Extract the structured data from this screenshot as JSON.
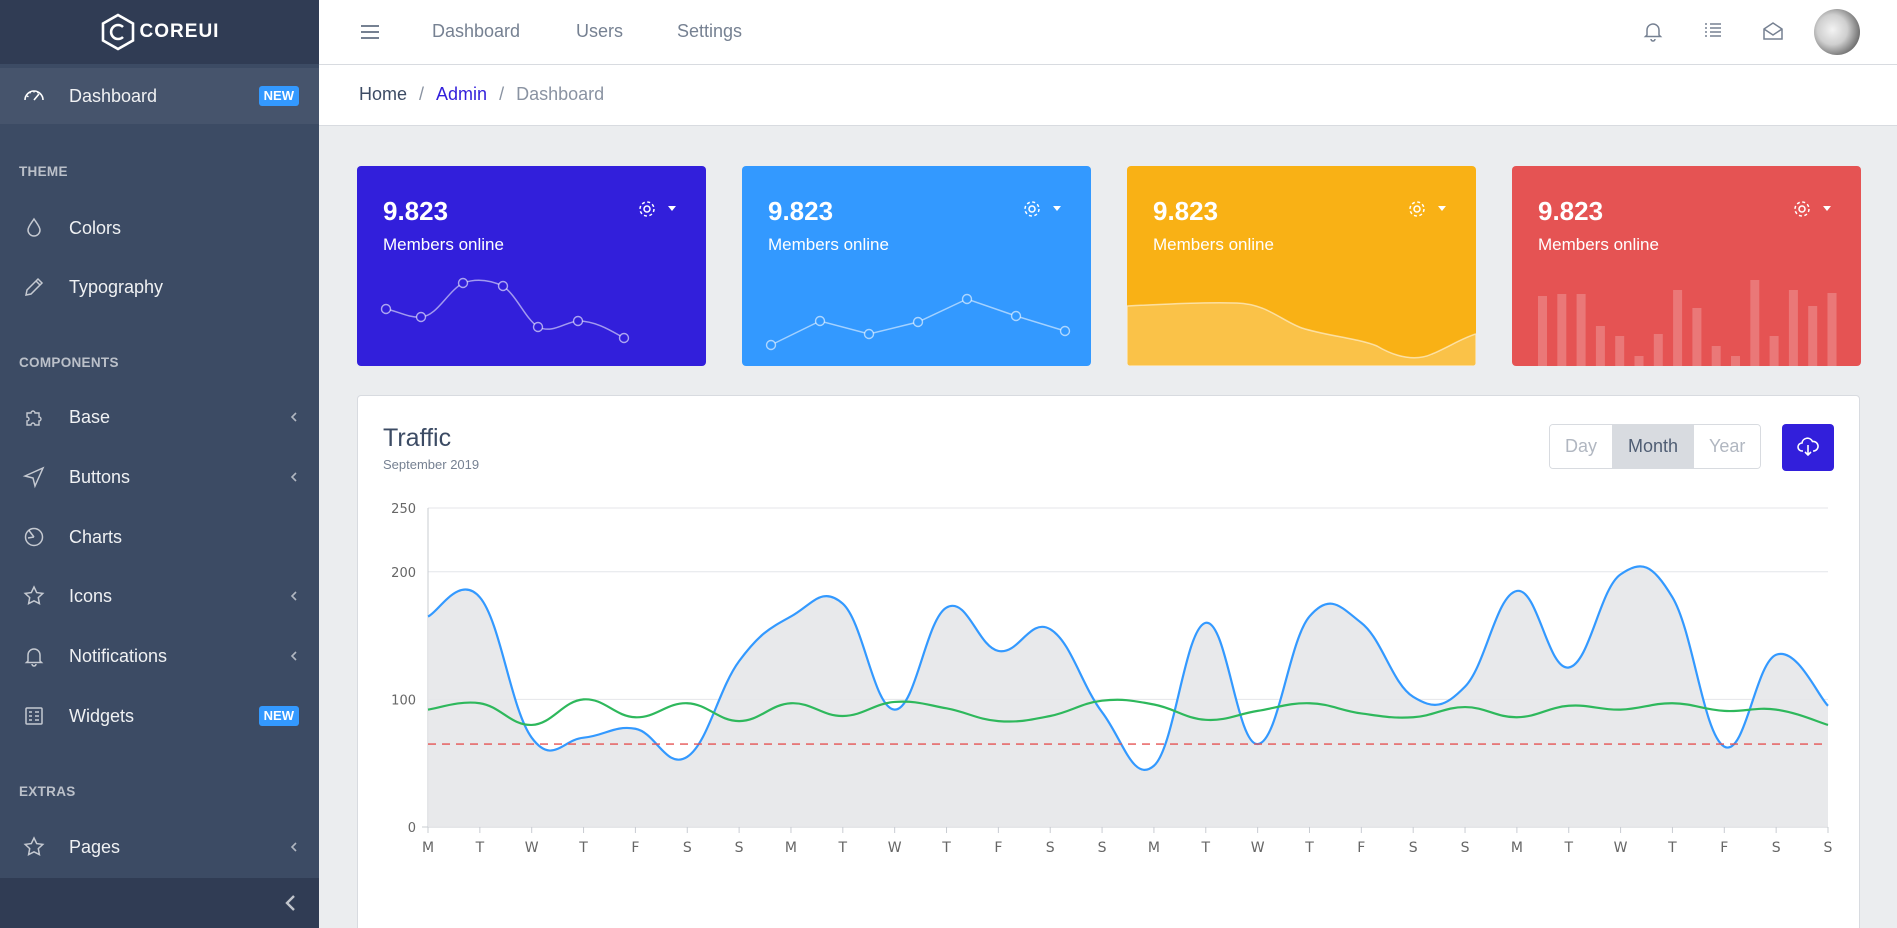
{
  "brand": {
    "name": "COREUI"
  },
  "sidebar": {
    "dashboard": {
      "label": "Dashboard",
      "badge": "NEW"
    },
    "theme_title": "THEME",
    "colors": "Colors",
    "typography": "Typography",
    "components_title": "COMPONENTS",
    "base": "Base",
    "buttons": "Buttons",
    "charts": "Charts",
    "icons": "Icons",
    "notifications": "Notifications",
    "widgets": {
      "label": "Widgets",
      "badge": "NEW"
    },
    "extras_title": "EXTRAS",
    "pages": "Pages"
  },
  "header": {
    "nav": [
      "Dashboard",
      "Users",
      "Settings"
    ],
    "icons": [
      "bell-icon",
      "list-icon",
      "envelope-icon"
    ]
  },
  "breadcrumb": {
    "home": "Home",
    "admin": "Admin",
    "current": "Dashboard",
    "separator": "/"
  },
  "cards": [
    {
      "value": "9.823",
      "label": "Members online",
      "color": "#321fdb",
      "chart": "line-points"
    },
    {
      "value": "9.823",
      "label": "Members online",
      "color": "#3399ff",
      "chart": "line-points"
    },
    {
      "value": "9.823",
      "label": "Members online",
      "color": "#f9b115",
      "chart": "area"
    },
    {
      "value": "9.823",
      "label": "Members online",
      "color": "#e55353",
      "chart": "bars"
    }
  ],
  "traffic": {
    "title": "Traffic",
    "subtitle": "September 2019",
    "periods": [
      "Day",
      "Month",
      "Year"
    ],
    "selected_period": "Month"
  },
  "chart_data": {
    "type": "line",
    "title": "Traffic",
    "categories": [
      "M",
      "T",
      "W",
      "T",
      "F",
      "S",
      "S",
      "M",
      "T",
      "W",
      "T",
      "F",
      "S",
      "S",
      "M",
      "T",
      "W",
      "T",
      "F",
      "S",
      "S",
      "M",
      "T",
      "W",
      "T",
      "F",
      "S",
      "S"
    ],
    "ylim": [
      0,
      250
    ],
    "yticks": [
      0,
      100,
      200,
      250
    ],
    "series": [
      {
        "name": "series-1",
        "color": "#3399ff",
        "fill": true,
        "values": [
          165,
          180,
          70,
          70,
          77,
          55,
          130,
          165,
          175,
          92,
          172,
          138,
          155,
          90,
          48,
          160,
          65,
          165,
          160,
          102,
          110,
          185,
          125,
          198,
          180,
          63,
          135,
          95
        ]
      },
      {
        "name": "series-2",
        "color": "#2eb85c",
        "fill": false,
        "values": [
          92,
          97,
          80,
          100,
          86,
          97,
          83,
          97,
          87,
          98,
          93,
          83,
          87,
          99,
          96,
          84,
          91,
          97,
          89,
          86,
          94,
          86,
          95,
          92,
          97,
          91,
          92,
          80
        ]
      },
      {
        "name": "threshold",
        "color": "#e55353",
        "dashed": true,
        "values": [
          65,
          65,
          65,
          65,
          65,
          65,
          65,
          65,
          65,
          65,
          65,
          65,
          65,
          65,
          65,
          65,
          65,
          65,
          65,
          65,
          65,
          65,
          65,
          65,
          65,
          65,
          65,
          65
        ]
      }
    ]
  }
}
